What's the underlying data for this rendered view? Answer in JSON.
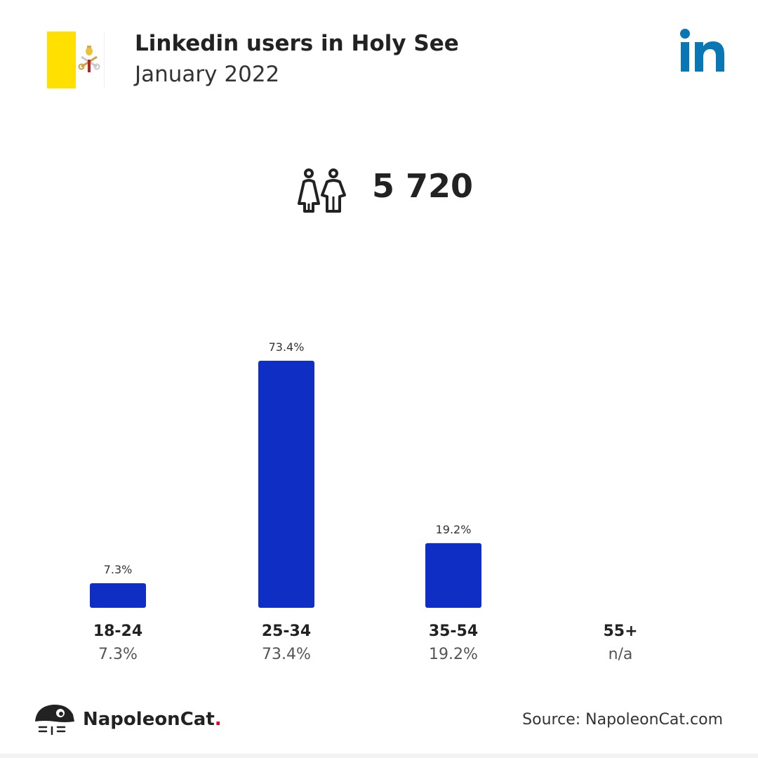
{
  "header": {
    "title": "Linkedin users in Holy See",
    "subtitle": "January 2022",
    "flag_icon": "holy-see-flag-icon",
    "brand_icon": "linkedin-icon"
  },
  "summary": {
    "icon": "people-icon",
    "total": "5 720"
  },
  "chart_data": {
    "type": "bar",
    "categories": [
      "18-24",
      "25-34",
      "35-54",
      "55+"
    ],
    "values": [
      7.3,
      73.4,
      19.2,
      null
    ],
    "data_labels": [
      "7.3%",
      "73.4%",
      "19.2%",
      ""
    ],
    "category_values": [
      "7.3%",
      "73.4%",
      "19.2%",
      "n/a"
    ],
    "ylim": [
      0,
      73.4
    ],
    "bar_color": "#0f2ec4",
    "grid": false
  },
  "footer": {
    "brand_name": "NapoleonCat",
    "brand_dot": ".",
    "source": "Source: NapoleonCat.com",
    "brand_icon": "napoleoncat-logo-icon"
  },
  "colors": {
    "bar": "#0f2ec4",
    "linkedin": "#0a77b5",
    "flag_yellow": "#ffe000",
    "brand_dot": "#e0002a"
  }
}
